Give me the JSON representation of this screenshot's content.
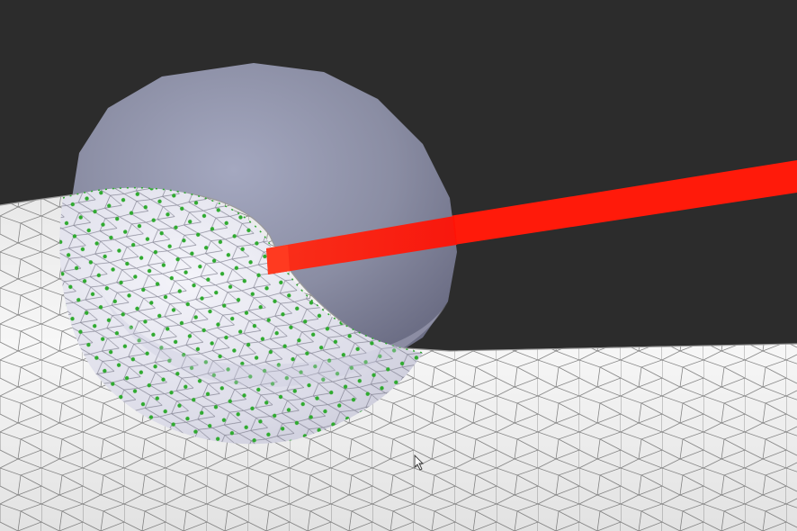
{
  "scene": {
    "background_color": "#2c2c2c",
    "surface_color": "#f2f2f2",
    "wire_color": "#5a5a5a",
    "sphere_color": "#9ea2c0",
    "selection_color": "#2faa2f",
    "ray_color": "#ff1a0a",
    "icons": {
      "cursor": "mouse-pointer-icon"
    }
  }
}
